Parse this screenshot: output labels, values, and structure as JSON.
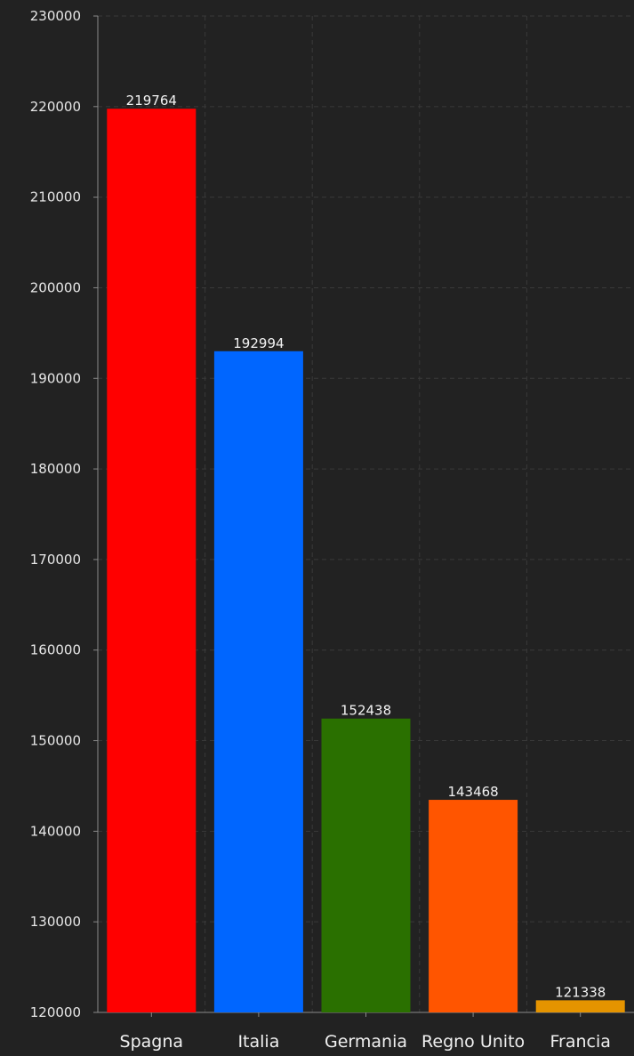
{
  "chart_data": {
    "type": "bar",
    "title": "",
    "xlabel": "",
    "ylabel": "",
    "categories": [
      "Spagna",
      "Italia",
      "Germania",
      "Regno Unito",
      "Francia"
    ],
    "values": [
      219764,
      192994,
      152438,
      143468,
      121338
    ],
    "colors": [
      "#ff0000",
      "#0066ff",
      "#2a7000",
      "#ff5500",
      "#e59400"
    ],
    "ylim": [
      120000,
      230000
    ],
    "yticks": [
      120000,
      130000,
      140000,
      150000,
      160000,
      170000,
      180000,
      190000,
      200000,
      210000,
      220000,
      230000
    ],
    "grid": true,
    "background": "#222222"
  }
}
